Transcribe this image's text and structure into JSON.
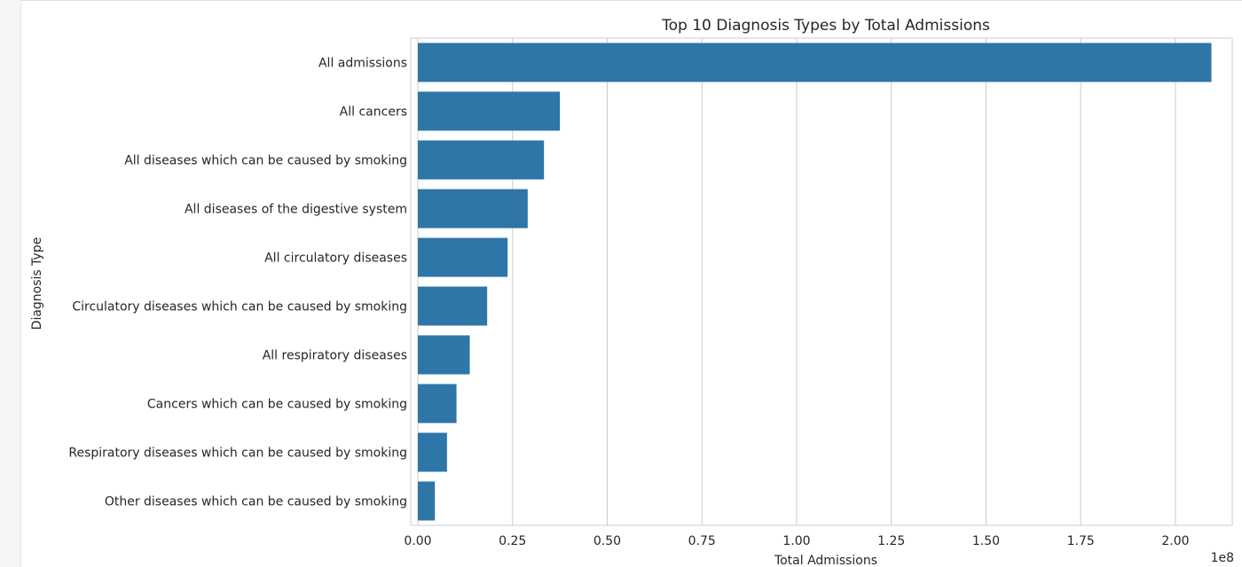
{
  "chart_data": {
    "type": "bar",
    "orientation": "horizontal",
    "title": "Top 10 Diagnosis Types by Total Admissions",
    "xlabel": "Total Admissions",
    "ylabel": "Diagnosis Type",
    "x_offset_label": "1e8",
    "xlim": [
      0,
      2.15
    ],
    "x_ticks": [
      "0.00",
      "0.25",
      "0.50",
      "0.75",
      "1.00",
      "1.25",
      "1.50",
      "1.75",
      "2.00"
    ],
    "categories": [
      "All admissions",
      "All cancers",
      "All diseases which can be caused by smoking",
      "All diseases of the digestive system",
      "All circulatory diseases",
      "Circulatory diseases which can be caused by smoking",
      "All respiratory diseases",
      "Cancers which can be caused by smoking",
      "Respiratory diseases which can be caused by smoking",
      "Other diseases which can be caused by smoking"
    ],
    "values": [
      2.095,
      0.375,
      0.333,
      0.29,
      0.237,
      0.183,
      0.137,
      0.102,
      0.077,
      0.045
    ],
    "value_scale": "1e8",
    "grid": "vertical",
    "bar_color": "#2e75a8"
  }
}
